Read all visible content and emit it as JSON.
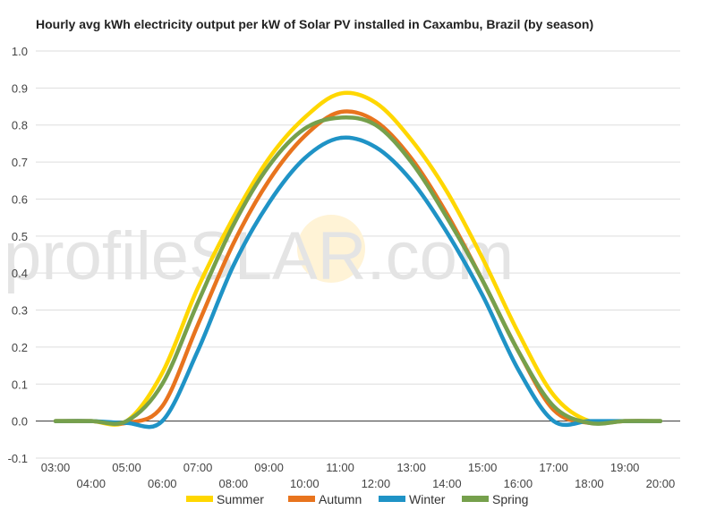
{
  "chart_data": {
    "type": "line",
    "title": "Hourly avg kWh electricity output per kW of Solar PV installed in Caxambu, Brazil (by season)",
    "xlabel": "",
    "ylabel": "",
    "ylim": [
      -0.1,
      1.0
    ],
    "yticks": [
      "-0.1",
      "0.0",
      "0.1",
      "0.2",
      "0.3",
      "0.4",
      "0.5",
      "0.6",
      "0.7",
      "0.8",
      "0.9",
      "1.0"
    ],
    "x": [
      "03:00",
      "04:00",
      "05:00",
      "06:00",
      "07:00",
      "08:00",
      "09:00",
      "10:00",
      "11:00",
      "12:00",
      "13:00",
      "14:00",
      "15:00",
      "16:00",
      "17:00",
      "18:00",
      "19:00",
      "20:00"
    ],
    "grid": true,
    "legend_position": "bottom",
    "watermark": {
      "text_before": "profile",
      "text_sun": "S",
      "text_after": "LAR.com"
    },
    "series": [
      {
        "name": "Summer",
        "color": "#FFD700",
        "values": [
          0.0,
          0.0,
          0.0,
          0.13,
          0.36,
          0.55,
          0.71,
          0.82,
          0.885,
          0.86,
          0.76,
          0.62,
          0.44,
          0.24,
          0.07,
          0.0,
          0.0,
          0.0
        ]
      },
      {
        "name": "Autumn",
        "color": "#E8741E",
        "values": [
          0.0,
          0.0,
          -0.005,
          0.04,
          0.26,
          0.48,
          0.65,
          0.77,
          0.835,
          0.81,
          0.71,
          0.56,
          0.38,
          0.19,
          0.03,
          -0.005,
          0.0,
          0.0
        ]
      },
      {
        "name": "Winter",
        "color": "#1F93C6",
        "values": [
          0.0,
          0.0,
          -0.005,
          0.0,
          0.19,
          0.42,
          0.59,
          0.71,
          0.765,
          0.74,
          0.65,
          0.51,
          0.34,
          0.14,
          0.0,
          0.0,
          0.0,
          0.0
        ]
      },
      {
        "name": "Spring",
        "color": "#76A04C",
        "values": [
          0.0,
          0.0,
          0.0,
          0.1,
          0.32,
          0.53,
          0.69,
          0.79,
          0.82,
          0.8,
          0.7,
          0.55,
          0.38,
          0.19,
          0.04,
          -0.005,
          0.0,
          0.0
        ]
      }
    ]
  }
}
